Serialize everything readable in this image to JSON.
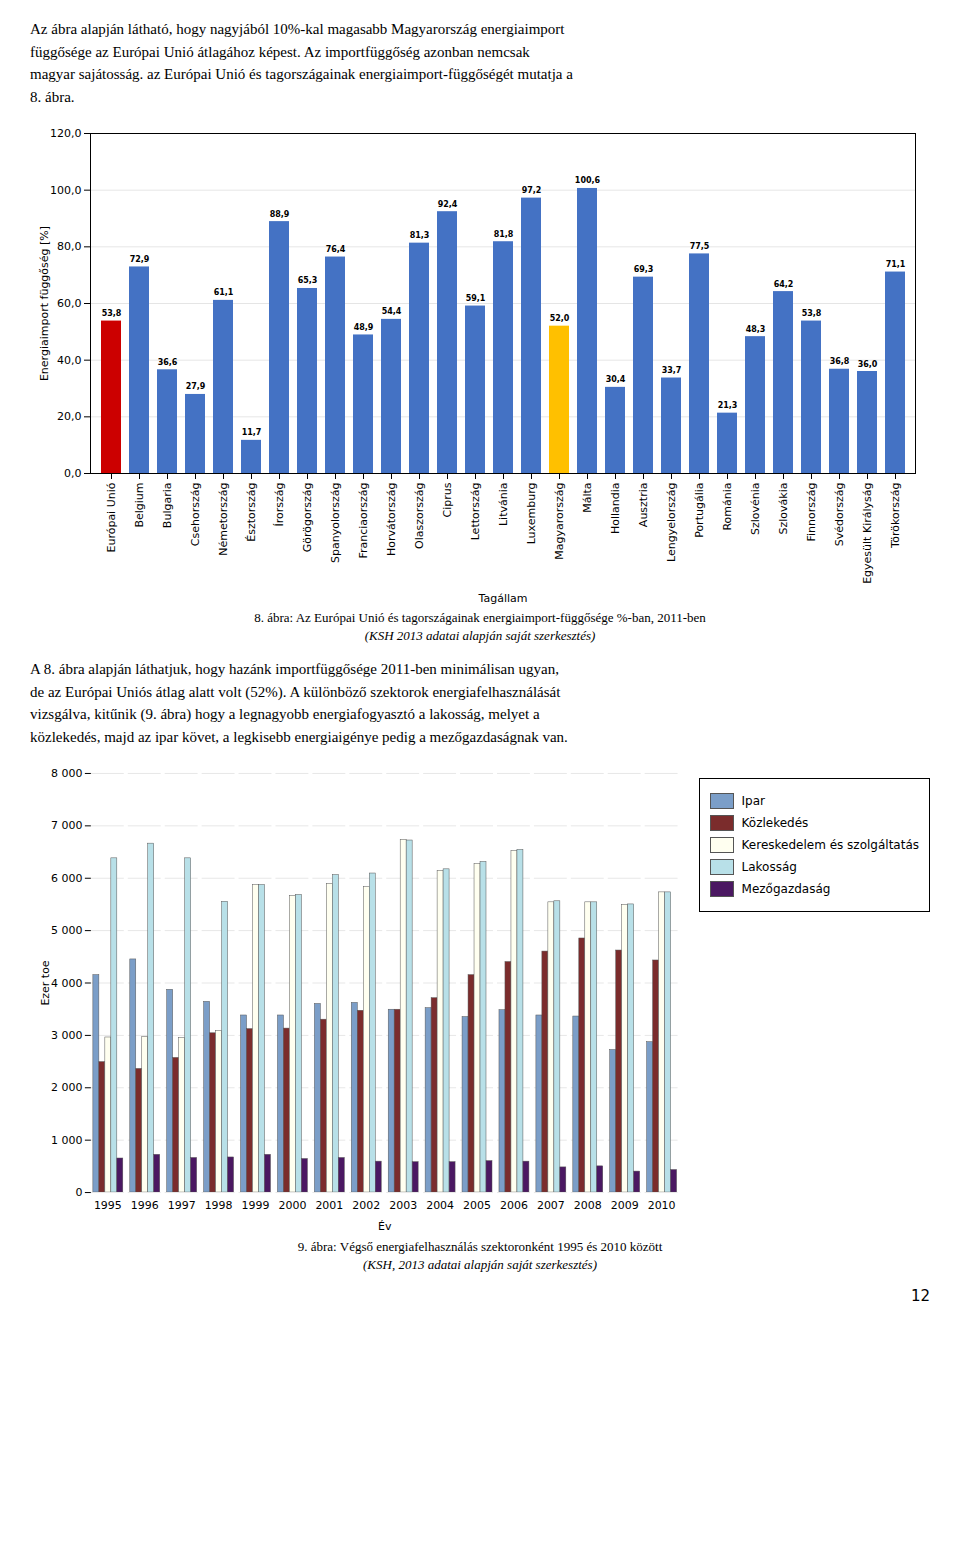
{
  "chart_data": [
    {
      "type": "bar",
      "annotations": [
        "Az ábra alapján látható, hogy nagyjából 10%-kal magasabb Magyarország energiaimport\nfüggősége az Európai Unió átlagához képest. Az importfüggőség azonban nemcsak\nmagyar sajátosság. az Európai Unió és tagországainak energiaimport-függőségét mutatja a\n8. ábra."
      ],
      "title": "8. ábra: Az Európai Unió és tagországainak energiaimport-függősége %-ban, 2011-ben",
      "subtitle": "(KSH 2013 adatai alapján saját szerkesztés)",
      "xlabel": "Tagállam",
      "ylabel": "Energiaimport függőség [%]",
      "categories": [
        "Európai Unió",
        "Belgium",
        "Bulgaria",
        "Csehország",
        "Németország",
        "Észtország",
        "Írország",
        "Görögország",
        "Spanyolország",
        "Franciaország",
        "Horvátország",
        "Olaszország",
        "Ciprus",
        "Lettország",
        "Litvánia",
        "Luxemburg",
        "Magyarország",
        "Málta",
        "Hollandia",
        "Ausztria",
        "Lengyelország",
        "Portugália",
        "Románia",
        "Szlovénia",
        "Szlovákia",
        "Finnország",
        "Svédország",
        "Egyesült Királyság",
        "Törökország"
      ],
      "values": [
        53.8,
        72.9,
        36.6,
        27.9,
        61.1,
        11.7,
        88.9,
        65.3,
        76.4,
        48.9,
        54.4,
        81.3,
        92.4,
        59.1,
        81.8,
        97.2,
        52.0,
        100.6,
        30.4,
        69.3,
        33.7,
        77.5,
        21.3,
        48.3,
        64.2,
        53.8,
        36.8,
        36.0,
        71.1
      ],
      "value_labels": [
        "53,8",
        "72,9",
        "36,6",
        "27,9",
        "61,1",
        "11,7",
        "88,9",
        "65,3",
        "76,4",
        "48,9",
        "54,4",
        "81,3",
        "92,4",
        "59,1",
        "81,8",
        "97,2",
        "52,0",
        "100,6",
        "30,4",
        "69,3",
        "33,7",
        "77,5",
        "21,3",
        "48,3",
        "64,2",
        "53,8",
        "36,8",
        "36,0",
        "71,1"
      ],
      "colors": [
        "#CC0000",
        "#4472C4",
        "#4472C4",
        "#4472C4",
        "#4472C4",
        "#4472C4",
        "#4472C4",
        "#4472C4",
        "#4472C4",
        "#4472C4",
        "#4472C4",
        "#4472C4",
        "#4472C4",
        "#4472C4",
        "#4472C4",
        "#4472C4",
        "#FFC000",
        "#4472C4",
        "#4472C4",
        "#4472C4",
        "#4472C4",
        "#4472C4",
        "#4472C4",
        "#4472C4",
        "#4472C4",
        "#4472C4",
        "#4472C4",
        "#4472C4",
        "#4472C4"
      ],
      "data_labels": true,
      "ylim": [
        0,
        120
      ],
      "yticks": [
        {
          "value": 0,
          "label": "0,0"
        },
        {
          "value": 20,
          "label": "20,0"
        },
        {
          "value": 40,
          "label": "40,0"
        },
        {
          "value": 60,
          "label": "60,0"
        },
        {
          "value": 80,
          "label": "80,0"
        },
        {
          "value": 100,
          "label": "100,0"
        },
        {
          "value": 120,
          "label": "120,0"
        }
      ],
      "grid": true
    },
    {
      "type": "bar",
      "annotations": [
        "A 8. ábra alapján láthatjuk, hogy hazánk importfüggősége 2011-ben minimálisan ugyan,\nde az Európai Uniós átlag alatt volt (52%). A különböző szektorok energiafelhasználását\nvizsgálva, kitűnik (9. ábra) hogy a legnagyobb energiafogyasztó a lakosság, melyet a\nközlekedés, majd az ipar követ, a legkisebb energiaigénye pedig a mezőgazdaságnak van."
      ],
      "title": "9. ábra: Végső energiafelhasználás szektoronként 1995 és 2010 között",
      "subtitle": "(KSH, 2013 adatai alapján saját szerkesztés)",
      "xlabel": "Év",
      "ylabel": "Ezer toe",
      "categories": [
        "1995",
        "1996",
        "1997",
        "1998",
        "1999",
        "2000",
        "2001",
        "2002",
        "2003",
        "2004",
        "2005",
        "2006",
        "2007",
        "2008",
        "2009",
        "2010"
      ],
      "series": [
        {
          "name": "Ipar",
          "color": "#7B9EC8",
          "values": [
            4150,
            4450,
            3870,
            3640,
            3380,
            3380,
            3600,
            3620,
            3490,
            3520,
            3350,
            3480,
            3380,
            3360,
            2720,
            2870
          ]
        },
        {
          "name": "Közlekedés",
          "color": "#7B2C2C",
          "values": [
            2490,
            2360,
            2570,
            3040,
            3120,
            3130,
            3300,
            3470,
            3490,
            3710,
            4150,
            4400,
            4600,
            4850,
            4620,
            4430
          ]
        },
        {
          "name": "Kereskedelem és szolgáltatás",
          "color": "#FFFFF0",
          "values": [
            2960,
            2970,
            2950,
            3080,
            5870,
            5660,
            5890,
            5830,
            6730,
            6140,
            6270,
            6520,
            5540,
            5540,
            5490,
            5730
          ]
        },
        {
          "name": "Lakosság",
          "color": "#B8E0E8",
          "values": [
            6380,
            6660,
            6380,
            5550,
            5870,
            5680,
            6060,
            6090,
            6720,
            6170,
            6310,
            6540,
            5560,
            5540,
            5500,
            5730
          ]
        },
        {
          "name": "Mezőgazdaság",
          "color": "#4B1862",
          "values": [
            650,
            720,
            660,
            670,
            720,
            640,
            660,
            590,
            580,
            580,
            600,
            590,
            480,
            500,
            400,
            430
          ]
        }
      ],
      "ylim": [
        0,
        8000
      ],
      "yticks": [
        0,
        {
          "value": 1000,
          "label": "1 000"
        },
        {
          "value": 2000,
          "label": "2 000"
        },
        {
          "value": 3000,
          "label": "3 000"
        },
        {
          "value": 4000,
          "label": "4 000"
        },
        {
          "value": 5000,
          "label": "5 000"
        },
        {
          "value": 6000,
          "label": "6 000"
        },
        {
          "value": 7000,
          "label": "7 000"
        },
        {
          "value": 8000,
          "label": "8 000"
        }
      ],
      "grid": true,
      "legend": "right"
    }
  ],
  "page_number": "12"
}
